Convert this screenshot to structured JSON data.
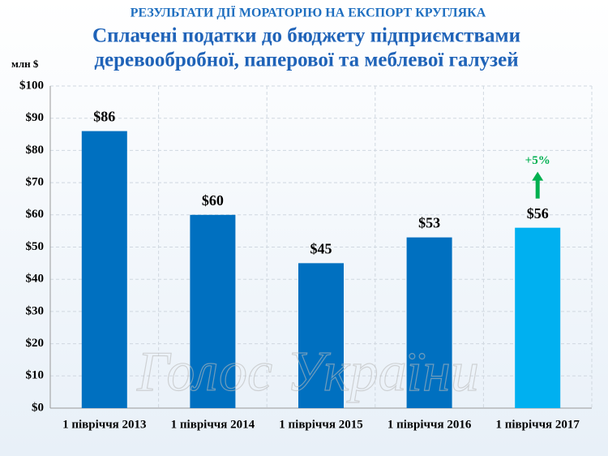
{
  "chart_data": {
    "type": "bar",
    "supertitle": "РЕЗУЛЬТАТИ ДІЇ МОРАТОРІЮ НА ЕКСПОРТ КРУГЛЯКА",
    "title": [
      "Сплачені податки до бюджету підприємствами",
      "деревообробної, паперової та меблевої галузей"
    ],
    "ylabel": "млн $",
    "categories": [
      "1 півріччя 2013",
      "1 півріччя 2014",
      "1 півріччя 2015",
      "1 півріччя 2016",
      "1 півріччя 2017"
    ],
    "values": [
      86,
      60,
      45,
      53,
      56
    ],
    "value_labels": [
      "$86",
      "$60",
      "$45",
      "$53",
      "$56"
    ],
    "colors": [
      "#0070c0",
      "#0070c0",
      "#0070c0",
      "#0070c0",
      "#00b0f0"
    ],
    "ylim": [
      0,
      100
    ],
    "yticks": [
      {
        "value": 0,
        "label": "$0"
      },
      {
        "value": 10,
        "label": "$10"
      },
      {
        "value": 20,
        "label": "$20"
      },
      {
        "value": 30,
        "label": "$30"
      },
      {
        "value": 40,
        "label": "$40"
      },
      {
        "value": 50,
        "label": "$50"
      },
      {
        "value": 60,
        "label": "$60"
      },
      {
        "value": 70,
        "label": "$70"
      },
      {
        "value": 80,
        "label": "$80"
      },
      {
        "value": 90,
        "label": "$90"
      },
      {
        "value": 100,
        "label": "$100"
      }
    ],
    "grid": true,
    "annotation": {
      "text": "+5%",
      "color": "#00b050"
    },
    "watermark": "Голос України"
  }
}
